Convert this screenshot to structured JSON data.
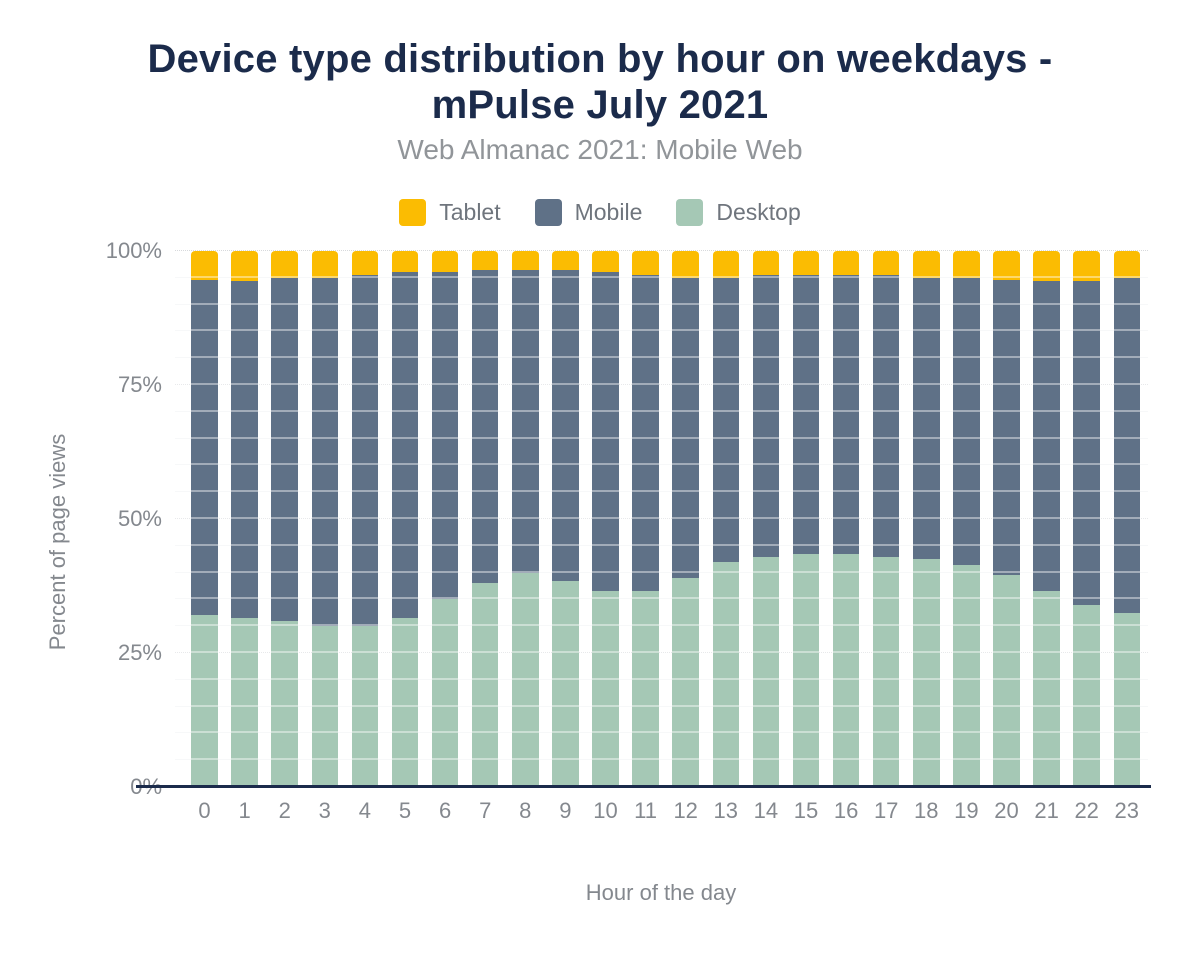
{
  "colors": {
    "title_text": "#1B2B4B",
    "subtitle_text": "#919599",
    "legend_text": "#6F757D",
    "axis_text": "#84888E",
    "baseline": "#1B2B4B",
    "tablet": "#FBBC02",
    "mobile": "#5F7187",
    "desktop": "#A5C8B5"
  },
  "chart_data": {
    "type": "bar",
    "stacked": true,
    "stack_total": 100,
    "title": "Device type distribution by hour on weekdays - mPulse July 2021",
    "title_lines": [
      "Device type distribution by hour on weekdays -",
      "mPulse July 2021"
    ],
    "subtitle": "Web Almanac 2021: Mobile Web",
    "xlabel": "Hour of the day",
    "ylabel": "Percent of page views",
    "categories": [
      "0",
      "1",
      "2",
      "3",
      "4",
      "5",
      "6",
      "7",
      "8",
      "9",
      "10",
      "11",
      "12",
      "13",
      "14",
      "15",
      "16",
      "17",
      "18",
      "19",
      "20",
      "21",
      "22",
      "23"
    ],
    "y_ticks": [
      {
        "label": "0%",
        "value": 0
      },
      {
        "label": "25%",
        "value": 25
      },
      {
        "label": "50%",
        "value": 50
      },
      {
        "label": "75%",
        "value": 75
      },
      {
        "label": "100%",
        "value": 100
      }
    ],
    "ylim": [
      0,
      100
    ],
    "grid": {
      "major_step": 25,
      "minor_step": 5
    },
    "legend_position": "top",
    "legend_order": [
      "Tablet",
      "Mobile",
      "Desktop"
    ],
    "stack_order_bottom_to_top": [
      "Desktop",
      "Mobile",
      "Tablet"
    ],
    "series": [
      {
        "name": "Tablet",
        "color": "#FBBC02",
        "values": [
          5.5,
          5.5,
          5,
          5,
          4.5,
          4,
          4,
          3.5,
          3.5,
          3.5,
          4,
          4.5,
          5,
          5,
          4.5,
          4.5,
          4.5,
          4.5,
          5,
          5,
          5.5,
          5.5,
          5.5,
          5
        ]
      },
      {
        "name": "Mobile",
        "color": "#5F7187",
        "values": [
          62.5,
          63,
          64,
          65,
          65.5,
          64.5,
          61,
          58.5,
          56.5,
          58,
          59.5,
          59,
          56,
          53,
          52.5,
          52,
          52,
          52.5,
          52.5,
          53.5,
          55,
          58,
          60.5,
          62.5
        ]
      },
      {
        "name": "Desktop",
        "color": "#A5C8B5",
        "values": [
          32,
          31.5,
          31,
          30,
          30,
          31.5,
          35,
          38,
          40,
          38.5,
          36.5,
          36.5,
          39,
          42,
          43,
          43.5,
          43.5,
          43,
          42.5,
          41.5,
          39.5,
          36.5,
          34,
          32.5
        ]
      }
    ]
  }
}
